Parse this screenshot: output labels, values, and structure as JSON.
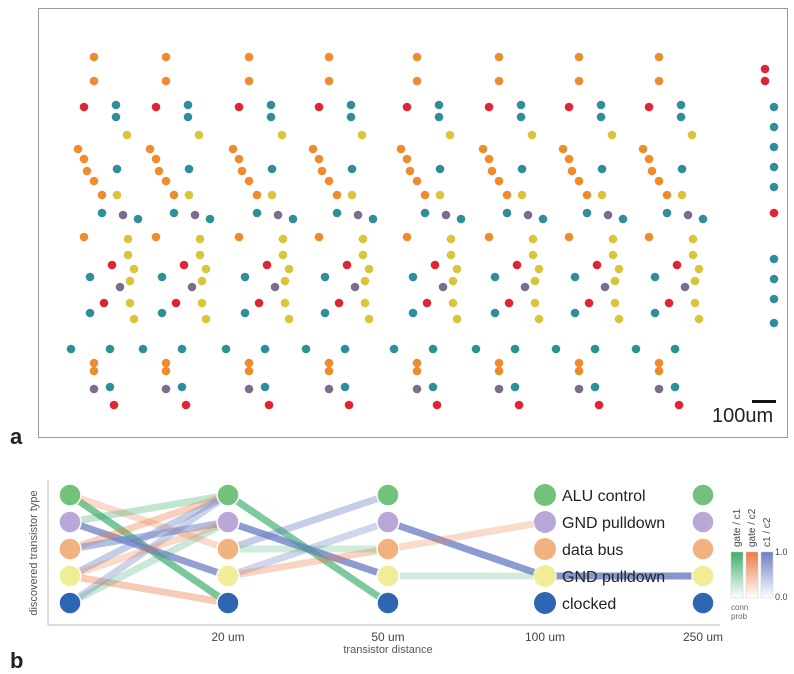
{
  "figure": {
    "panel_a_letter": "a",
    "panel_b_letter": "b",
    "scale_bar_label": "100um"
  },
  "colors": {
    "orange": "#f08a2e",
    "red": "#e02434",
    "teal": "#2e8f98",
    "yellow": "#d9c43a",
    "purple": "#7d6c8e",
    "green": "#72c27c",
    "lavender": "#b9a7d6",
    "peach": "#f2b27f",
    "lightyellow": "#f1ec96",
    "blue": "#2f66b3"
  },
  "chart_data": {
    "type": "line",
    "xlabel": "transistor distance",
    "ylabel": "discovered transistor type",
    "x_tick_labels": [
      "20 um",
      "50 um",
      "100 um",
      "250 um"
    ],
    "categories": [
      "ALU control",
      "GND  pulldown",
      "data bus",
      "GND  pulldown",
      "clocked"
    ],
    "category_colors": [
      "#72c27c",
      "#b9a7d6",
      "#f2b27f",
      "#f1ec96",
      "#2f66b3"
    ],
    "node_columns": 6,
    "colorbar": {
      "labels": [
        "gate / c1",
        "gate / c2",
        "c1 / c2"
      ],
      "colors": [
        "#3fae6e",
        "#ec7a43",
        "#6c7fc4"
      ],
      "max": "1.0",
      "min": "0.0",
      "title_line1": "conn",
      "title_line2": "prob"
    },
    "connections": [
      {
        "from": [
          0,
          0
        ],
        "to": [
          1,
          4
        ],
        "type": "gate / c1",
        "prob": 0.75
      },
      {
        "from": [
          0,
          0
        ],
        "to": [
          1,
          2
        ],
        "type": "gate / c2",
        "prob": 0.2
      },
      {
        "from": [
          0,
          1
        ],
        "to": [
          1,
          3
        ],
        "type": "c1 / c2",
        "prob": 0.8
      },
      {
        "from": [
          0,
          1
        ],
        "to": [
          1,
          0
        ],
        "type": "gate / c1",
        "prob": 0.25
      },
      {
        "from": [
          0,
          2
        ],
        "to": [
          1,
          0
        ],
        "type": "gate / c2",
        "prob": 0.3
      },
      {
        "from": [
          0,
          2
        ],
        "to": [
          1,
          1
        ],
        "type": "c1 / c2",
        "prob": 0.5
      },
      {
        "from": [
          0,
          3
        ],
        "to": [
          1,
          0
        ],
        "type": "c1 / c2",
        "prob": 0.35
      },
      {
        "from": [
          0,
          3
        ],
        "to": [
          1,
          4
        ],
        "type": "gate / c2",
        "prob": 0.35
      },
      {
        "from": [
          0,
          4
        ],
        "to": [
          1,
          0
        ],
        "type": "c1 / c2",
        "prob": 0.3
      },
      {
        "from": [
          0,
          4
        ],
        "to": [
          1,
          1
        ],
        "type": "gate / c1",
        "prob": 0.2
      },
      {
        "from": [
          0,
          3
        ],
        "to": [
          1,
          1
        ],
        "type": "gate / c2",
        "prob": 0.2
      },
      {
        "from": [
          1,
          0
        ],
        "to": [
          2,
          4
        ],
        "type": "gate / c1",
        "prob": 0.7
      },
      {
        "from": [
          1,
          1
        ],
        "to": [
          2,
          3
        ],
        "type": "c1 / c2",
        "prob": 0.85
      },
      {
        "from": [
          1,
          2
        ],
        "to": [
          2,
          0
        ],
        "type": "c1 / c2",
        "prob": 0.35
      },
      {
        "from": [
          1,
          3
        ],
        "to": [
          2,
          1
        ],
        "type": "c1 / c2",
        "prob": 0.25
      },
      {
        "from": [
          1,
          3
        ],
        "to": [
          2,
          2
        ],
        "type": "gate / c2",
        "prob": 0.25
      },
      {
        "from": [
          1,
          2
        ],
        "to": [
          2,
          2
        ],
        "type": "gate / c1",
        "prob": 0.15
      },
      {
        "from": [
          2,
          1
        ],
        "to": [
          3,
          3
        ],
        "type": "c1 / c2",
        "prob": 0.85
      },
      {
        "from": [
          2,
          3
        ],
        "to": [
          3,
          3
        ],
        "type": "gate / c1",
        "prob": 0.15
      },
      {
        "from": [
          2,
          2
        ],
        "to": [
          3,
          1
        ],
        "type": "gate / c2",
        "prob": 0.2
      },
      {
        "from": [
          3,
          3
        ],
        "to": [
          4,
          3
        ],
        "type": "c1 / c2",
        "prob": 0.9
      }
    ]
  }
}
